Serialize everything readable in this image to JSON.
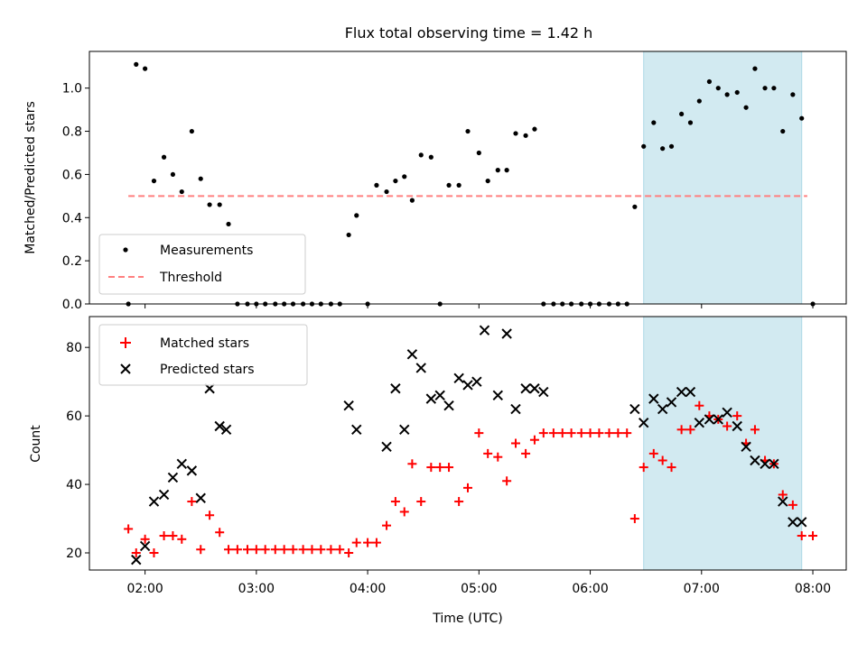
{
  "title": "Flux total observing time = 1.42 h",
  "chart_data": [
    {
      "type": "scatter",
      "ylabel": "Matched/Predicted stars",
      "xlim": [
        1.5,
        8.3
      ],
      "ylim": [
        0,
        1.17
      ],
      "yticks": [
        0.0,
        0.2,
        0.4,
        0.6,
        0.8,
        1.0
      ],
      "ytick_labels": [
        "0.0",
        "0.2",
        "0.4",
        "0.6",
        "0.8",
        "1.0"
      ],
      "highlight_span": [
        6.48,
        7.9
      ],
      "highlight_color": "#add8e6",
      "legend_position": "lower-left",
      "series": [
        {
          "name": "Measurements",
          "marker": "dot",
          "color": "#000000",
          "x": [
            1.85,
            1.92,
            2.0,
            2.08,
            2.17,
            2.25,
            2.33,
            2.42,
            2.5,
            2.58,
            2.67,
            2.75,
            2.83,
            2.92,
            3.0,
            3.08,
            3.17,
            3.25,
            3.33,
            3.42,
            3.5,
            3.58,
            3.67,
            3.75,
            3.83,
            3.9,
            4.0,
            4.08,
            4.17,
            4.25,
            4.33,
            4.4,
            4.48,
            4.57,
            4.65,
            4.73,
            4.82,
            4.9,
            5.0,
            5.08,
            5.17,
            5.25,
            5.33,
            5.42,
            5.5,
            5.58,
            5.67,
            5.75,
            5.83,
            5.92,
            6.0,
            6.08,
            6.17,
            6.25,
            6.33,
            6.4,
            6.48,
            6.57,
            6.65,
            6.73,
            6.82,
            6.9,
            6.98,
            7.07,
            7.15,
            7.23,
            7.32,
            7.4,
            7.48,
            7.57,
            7.65,
            7.73,
            7.82,
            7.9,
            8.0
          ],
          "y": [
            0.0,
            1.11,
            1.09,
            0.57,
            0.68,
            0.6,
            0.52,
            0.8,
            0.58,
            0.46,
            0.46,
            0.37,
            0.0,
            0.0,
            0.0,
            0.0,
            0.0,
            0.0,
            0.0,
            0.0,
            0.0,
            0.0,
            0.0,
            0.0,
            0.32,
            0.41,
            0.0,
            0.55,
            0.52,
            0.57,
            0.59,
            0.48,
            0.69,
            0.68,
            0.0,
            0.55,
            0.55,
            0.8,
            0.7,
            0.57,
            0.62,
            0.62,
            0.79,
            0.78,
            0.81,
            0.0,
            0.0,
            0.0,
            0.0,
            0.0,
            0.0,
            0.0,
            0.0,
            0.0,
            0.0,
            0.45,
            0.73,
            0.84,
            0.72,
            0.73,
            0.88,
            0.84,
            0.94,
            1.03,
            1.0,
            0.97,
            0.98,
            0.91,
            1.09,
            1.0,
            1.0,
            0.8,
            0.97,
            0.86,
            0.0
          ]
        },
        {
          "name": "Threshold",
          "style": "dashed",
          "color": "#ff7f7f",
          "x": [
            1.85,
            7.95
          ],
          "y": [
            0.5,
            0.5
          ]
        }
      ]
    },
    {
      "type": "scatter",
      "ylabel": "Count",
      "xlabel": "Time (UTC)",
      "xlim": [
        1.5,
        8.3
      ],
      "ylim": [
        15,
        89
      ],
      "yticks": [
        20,
        40,
        60,
        80
      ],
      "ytick_labels": [
        "20",
        "40",
        "60",
        "80"
      ],
      "xticks": [
        2,
        3,
        4,
        5,
        6,
        7,
        8
      ],
      "xtick_labels": [
        "02:00",
        "03:00",
        "04:00",
        "05:00",
        "06:00",
        "07:00",
        "08:00"
      ],
      "highlight_span": [
        6.48,
        7.9
      ],
      "highlight_color": "#add8e6",
      "legend_position": "upper-left",
      "series": [
        {
          "name": "Matched stars",
          "marker": "plus",
          "color": "#ff0000",
          "x": [
            1.85,
            1.92,
            2.0,
            2.08,
            2.17,
            2.25,
            2.33,
            2.42,
            2.5,
            2.58,
            2.67,
            2.75,
            2.83,
            2.92,
            3.0,
            3.08,
            3.17,
            3.25,
            3.33,
            3.42,
            3.5,
            3.58,
            3.67,
            3.75,
            3.83,
            3.9,
            4.0,
            4.08,
            4.17,
            4.25,
            4.33,
            4.4,
            4.48,
            4.57,
            4.65,
            4.73,
            4.82,
            4.9,
            5.0,
            5.08,
            5.17,
            5.25,
            5.33,
            5.42,
            5.5,
            5.58,
            5.67,
            5.75,
            5.83,
            5.92,
            6.0,
            6.08,
            6.17,
            6.25,
            6.33,
            6.4,
            6.48,
            6.57,
            6.65,
            6.73,
            6.82,
            6.9,
            6.98,
            7.07,
            7.15,
            7.23,
            7.32,
            7.4,
            7.48,
            7.57,
            7.65,
            7.73,
            7.82,
            7.9,
            8.0
          ],
          "y": [
            27,
            20,
            24,
            20,
            25,
            25,
            24,
            35,
            21,
            31,
            26,
            21,
            21,
            21,
            21,
            21,
            21,
            21,
            21,
            21,
            21,
            21,
            21,
            21,
            20,
            23,
            23,
            23,
            28,
            35,
            32,
            46,
            35,
            45,
            45,
            45,
            35,
            39,
            55,
            49,
            48,
            41,
            52,
            49,
            53,
            55,
            55,
            55,
            55,
            55,
            55,
            55,
            55,
            55,
            55,
            30,
            45,
            49,
            47,
            45,
            56,
            56,
            63,
            60,
            59,
            57,
            60,
            52,
            56,
            47,
            46,
            37,
            34,
            25,
            25
          ]
        },
        {
          "name": "Predicted stars",
          "marker": "x",
          "color": "#000000",
          "x": [
            1.92,
            2.0,
            2.08,
            2.17,
            2.25,
            2.33,
            2.42,
            2.5,
            2.58,
            2.67,
            2.73,
            3.83,
            3.9,
            4.17,
            4.25,
            4.33,
            4.4,
            4.48,
            4.57,
            4.65,
            4.73,
            4.82,
            4.9,
            4.98,
            5.05,
            5.17,
            5.25,
            5.33,
            5.42,
            5.5,
            5.58,
            6.4,
            6.48,
            6.57,
            6.65,
            6.73,
            6.82,
            6.9,
            6.98,
            7.07,
            7.15,
            7.23,
            7.32,
            7.4,
            7.48,
            7.57,
            7.65,
            7.73,
            7.82,
            7.9
          ],
          "y": [
            18,
            22,
            35,
            37,
            42,
            46,
            44,
            36,
            68,
            57,
            56,
            63,
            56,
            51,
            68,
            56,
            78,
            74,
            65,
            66,
            63,
            71,
            69,
            70,
            85,
            66,
            84,
            62,
            68,
            68,
            67,
            62,
            58,
            65,
            62,
            64,
            67,
            67,
            58,
            59,
            59,
            61,
            57,
            51,
            47,
            46,
            46,
            35,
            29,
            29
          ]
        }
      ]
    }
  ]
}
